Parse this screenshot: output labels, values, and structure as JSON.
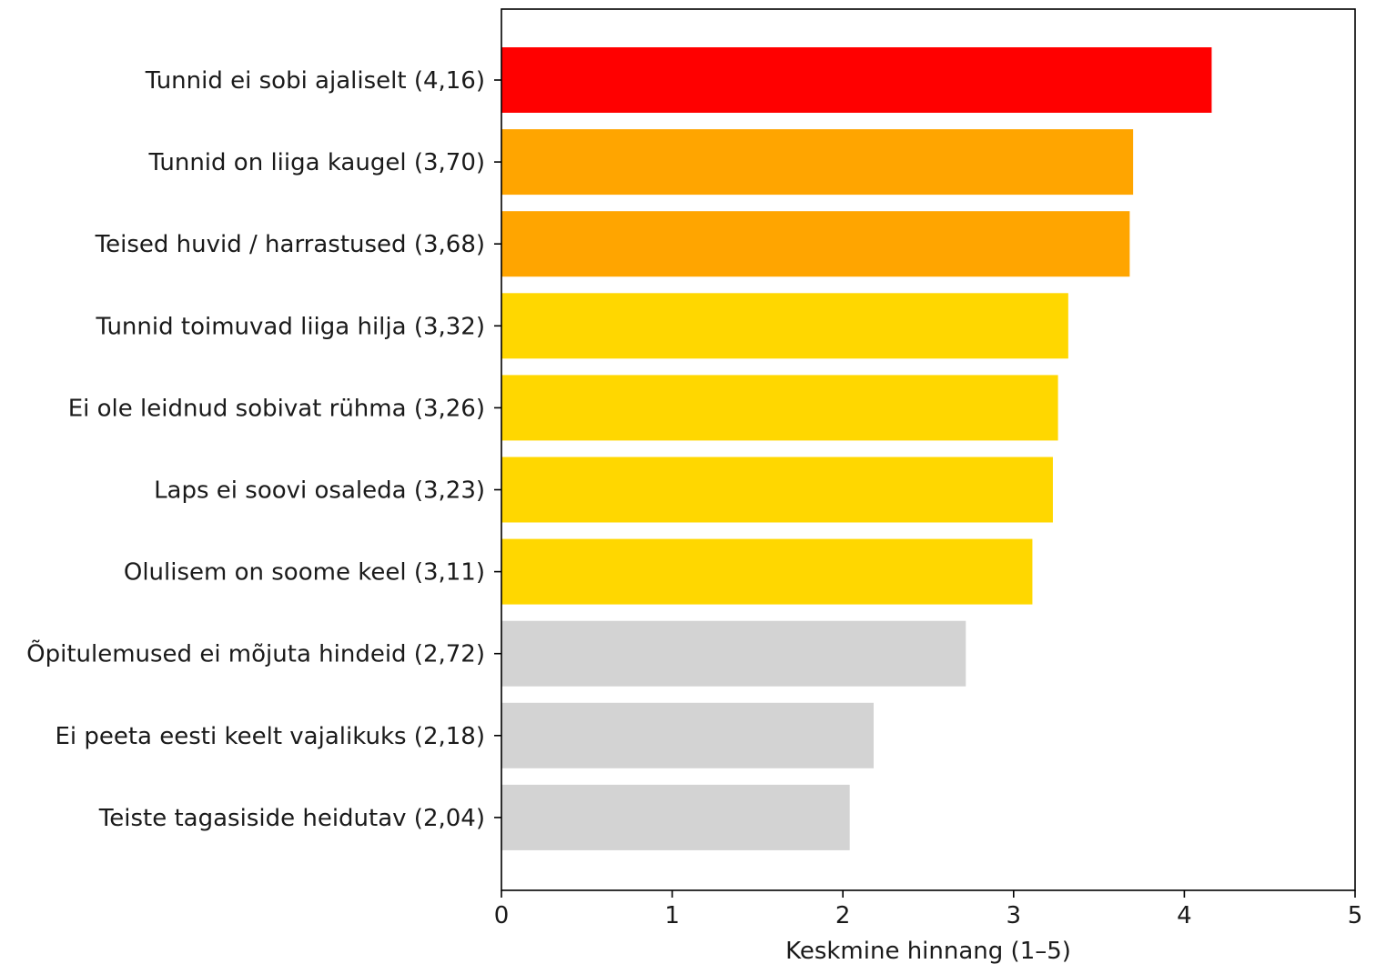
{
  "chart_data": {
    "type": "bar",
    "orientation": "horizontal",
    "categories": [
      "Tunnid ei sobi ajaliselt (4,16)",
      "Tunnid on liiga kaugel (3,70)",
      "Teised huvid / harrastused (3,68)",
      "Tunnid toimuvad liiga hilja (3,32)",
      "Ei ole leidnud sobivat rühma (3,26)",
      "Laps ei soovi osaleda (3,23)",
      "Olulisem on soome keel (3,11)",
      "Õpitulemused ei mõjuta hindeid (2,72)",
      "Ei peeta eesti keelt vajalikuks (2,18)",
      "Teiste tagasiside heidutav (2,04)"
    ],
    "values": [
      4.16,
      3.7,
      3.68,
      3.32,
      3.26,
      3.23,
      3.11,
      2.72,
      2.18,
      2.04
    ],
    "bar_colors": [
      "#ff0000",
      "#ffa500",
      "#ffa500",
      "#ffd700",
      "#ffd700",
      "#ffd700",
      "#ffd700",
      "#d3d3d3",
      "#d3d3d3",
      "#d3d3d3"
    ],
    "xlabel": "Keskmine hinnang (1–5)",
    "xlim": [
      0,
      5
    ],
    "xticks": [
      "0",
      "1",
      "2",
      "3",
      "4",
      "5"
    ],
    "grid": false
  }
}
